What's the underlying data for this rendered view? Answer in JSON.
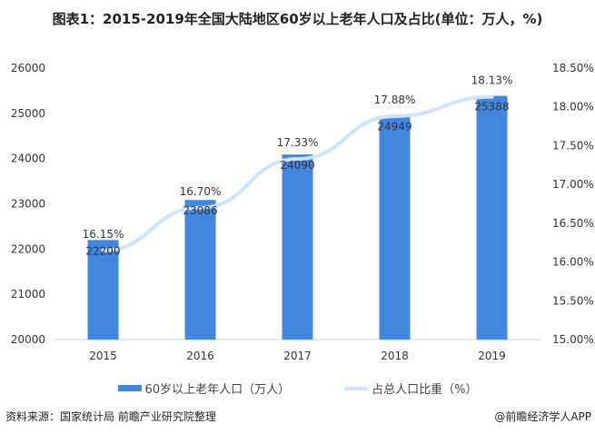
{
  "title": "图表1：2015-2019年全国大陆地区60岁以上老年人口及占比(单位：万人，%)",
  "chart_data": {
    "type": "bar+line",
    "categories": [
      "2015",
      "2016",
      "2017",
      "2018",
      "2019"
    ],
    "series": [
      {
        "name": "60岁以上老年人口（万人）",
        "type": "bar",
        "axis": "left",
        "values": [
          22200,
          23086,
          24090,
          24949,
          25388
        ],
        "labels": [
          "22200",
          "23086",
          "24090",
          "24949",
          "25388"
        ],
        "color": "#4187e0"
      },
      {
        "name": "占总人口比重（%）",
        "type": "line",
        "axis": "right",
        "values": [
          16.15,
          16.7,
          17.33,
          17.88,
          18.13
        ],
        "labels": [
          "16.15%",
          "16.70%",
          "17.33%",
          "17.88%",
          "18.13%"
        ],
        "color": "#cfe3fb"
      }
    ],
    "left_axis": {
      "range": [
        20000,
        26000
      ],
      "ticks": [
        "20000",
        "21000",
        "22000",
        "23000",
        "24000",
        "25000",
        "26000"
      ]
    },
    "right_axis": {
      "range": [
        15.0,
        18.5
      ],
      "ticks": [
        "15.00%",
        "15.50%",
        "16.00%",
        "16.50%",
        "17.00%",
        "17.50%",
        "18.00%",
        "18.50%"
      ]
    },
    "grid": false,
    "legend": "bottom"
  },
  "footer": {
    "source": "资料来源：国家统计局 前瞻产业研究院整理",
    "credit": "@前瞻经济学人APP"
  }
}
